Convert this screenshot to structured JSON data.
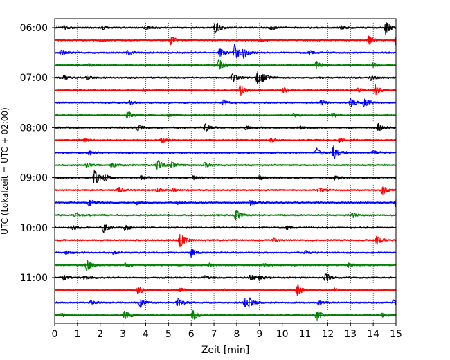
{
  "chart_data": {
    "type": "line",
    "title": "",
    "xlabel": "Zeit  [min]",
    "ylabel": "UTC (Lokalzeit = UTC + 02:00)",
    "xlim": [
      0,
      15
    ],
    "x_ticks": [
      "0",
      "1",
      "2",
      "3",
      "4",
      "5",
      "6",
      "7",
      "8",
      "9",
      "10",
      "11",
      "12",
      "13",
      "14",
      "15"
    ],
    "y_tick_labels": [
      "06:00",
      "07:00",
      "08:00",
      "09:00",
      "10:00",
      "11:00"
    ],
    "grid": "vertical dotted at each minute",
    "trace_interval_minutes": 15,
    "trace_color_cycle": [
      "#000000",
      "#ff0000",
      "#0000ff",
      "#008000"
    ],
    "series": [
      {
        "start": "06:00",
        "events": [
          [
            0.4,
            0.25
          ],
          [
            2.1,
            0.2
          ],
          [
            4.0,
            0.2
          ],
          [
            7.05,
            0.9
          ],
          [
            9.5,
            0.25
          ],
          [
            12.6,
            0.25
          ],
          [
            14.55,
            0.8
          ]
        ]
      },
      {
        "start": "06:15",
        "events": [
          [
            2.0,
            0.2
          ],
          [
            5.1,
            0.6
          ],
          [
            9.0,
            0.2
          ],
          [
            13.8,
            0.6
          ],
          [
            15.0,
            0.6
          ]
        ]
      },
      {
        "start": "06:30",
        "events": [
          [
            0.3,
            0.3
          ],
          [
            3.2,
            0.3
          ],
          [
            7.25,
            0.55
          ],
          [
            7.9,
            1.0
          ],
          [
            8.3,
            0.55
          ],
          [
            11.2,
            0.25
          ]
        ]
      },
      {
        "start": "06:45",
        "events": [
          [
            1.5,
            0.2
          ],
          [
            7.2,
            0.85
          ],
          [
            11.5,
            0.5
          ],
          [
            14.0,
            0.3
          ]
        ]
      },
      {
        "start": "07:00",
        "events": [
          [
            0.4,
            0.25
          ],
          [
            1.4,
            0.2
          ],
          [
            7.8,
            0.6
          ],
          [
            8.9,
            0.8
          ],
          [
            9.15,
            0.4
          ],
          [
            13.9,
            0.3
          ]
        ]
      },
      {
        "start": "07:15",
        "events": [
          [
            3.9,
            0.2
          ],
          [
            8.15,
            0.7
          ],
          [
            10.05,
            0.35
          ],
          [
            13.3,
            0.3
          ],
          [
            14.1,
            0.6
          ]
        ]
      },
      {
        "start": "07:30",
        "events": [
          [
            3.3,
            0.2
          ],
          [
            7.4,
            0.3
          ],
          [
            11.7,
            0.35
          ],
          [
            13.0,
            0.55
          ],
          [
            13.6,
            0.6
          ]
        ]
      },
      {
        "start": "07:45",
        "events": [
          [
            3.2,
            0.5
          ],
          [
            5.0,
            0.2
          ],
          [
            10.5,
            0.25
          ],
          [
            12.2,
            0.3
          ]
        ]
      },
      {
        "start": "08:00",
        "events": [
          [
            3.65,
            0.4
          ],
          [
            6.6,
            0.6
          ],
          [
            8.4,
            0.25
          ],
          [
            10.8,
            0.2
          ],
          [
            14.2,
            0.55
          ]
        ]
      },
      {
        "start": "08:15",
        "events": [
          [
            1.3,
            0.2
          ],
          [
            4.7,
            0.3
          ],
          [
            9.5,
            0.2
          ],
          [
            12.5,
            0.25
          ]
        ]
      },
      {
        "start": "08:30",
        "events": [
          [
            1.5,
            0.25
          ],
          [
            11.5,
            0.55
          ],
          [
            12.25,
            0.85
          ],
          [
            14.0,
            0.3
          ]
        ]
      },
      {
        "start": "08:45",
        "events": [
          [
            1.4,
            0.3
          ],
          [
            2.5,
            0.35
          ],
          [
            4.5,
            0.8
          ],
          [
            5.15,
            0.4
          ],
          [
            6.6,
            0.35
          ]
        ]
      },
      {
        "start": "09:00",
        "events": [
          [
            1.75,
            1.0
          ],
          [
            2.2,
            0.35
          ],
          [
            3.8,
            0.25
          ],
          [
            6.1,
            0.25
          ],
          [
            9.0,
            0.25
          ],
          [
            12.3,
            0.3
          ]
        ]
      },
      {
        "start": "09:15",
        "events": [
          [
            2.8,
            0.35
          ],
          [
            4.5,
            0.25
          ],
          [
            5.2,
            0.2
          ],
          [
            11.6,
            0.3
          ],
          [
            14.4,
            0.55
          ]
        ]
      },
      {
        "start": "09:30",
        "events": [
          [
            1.5,
            0.4
          ],
          [
            3.6,
            0.25
          ],
          [
            5.4,
            0.2
          ],
          [
            8.6,
            0.35
          ],
          [
            15.0,
            0.6
          ]
        ]
      },
      {
        "start": "09:45",
        "events": [
          [
            0.9,
            0.2
          ],
          [
            7.95,
            0.8
          ],
          [
            13.1,
            0.25
          ]
        ]
      },
      {
        "start": "10:00",
        "events": [
          [
            0.8,
            0.25
          ],
          [
            2.15,
            0.6
          ],
          [
            3.1,
            0.35
          ],
          [
            10.2,
            0.2
          ]
        ]
      },
      {
        "start": "10:15",
        "events": [
          [
            5.5,
            1.1
          ],
          [
            9.6,
            0.2
          ],
          [
            14.15,
            0.55
          ]
        ]
      },
      {
        "start": "10:30",
        "events": [
          [
            0.5,
            0.2
          ],
          [
            2.6,
            0.2
          ],
          [
            6.0,
            0.55
          ],
          [
            11.0,
            0.2
          ]
        ]
      },
      {
        "start": "10:45",
        "events": [
          [
            1.4,
            0.85
          ],
          [
            3.1,
            0.3
          ],
          [
            6.8,
            0.2
          ],
          [
            9.2,
            0.2
          ],
          [
            12.9,
            0.25
          ]
        ]
      },
      {
        "start": "11:00",
        "events": [
          [
            0.4,
            0.35
          ],
          [
            1.3,
            0.2
          ],
          [
            6.6,
            0.25
          ],
          [
            8.6,
            0.35
          ],
          [
            9.0,
            0.25
          ],
          [
            11.9,
            0.6
          ]
        ]
      },
      {
        "start": "11:15",
        "events": [
          [
            3.65,
            0.55
          ],
          [
            5.5,
            0.35
          ],
          [
            7.4,
            0.2
          ],
          [
            10.65,
            0.8
          ],
          [
            12.3,
            0.2
          ]
        ]
      },
      {
        "start": "11:30",
        "events": [
          [
            1.6,
            0.25
          ],
          [
            3.75,
            0.6
          ],
          [
            5.4,
            0.6
          ],
          [
            8.35,
            0.55
          ],
          [
            8.55,
            0.5
          ],
          [
            11.6,
            0.3
          ],
          [
            14.9,
            0.35
          ]
        ]
      },
      {
        "start": "11:45",
        "events": [
          [
            0.3,
            0.25
          ],
          [
            3.05,
            0.75
          ],
          [
            6.05,
            0.85
          ],
          [
            11.5,
            0.8
          ],
          [
            14.4,
            0.25
          ]
        ]
      }
    ]
  }
}
